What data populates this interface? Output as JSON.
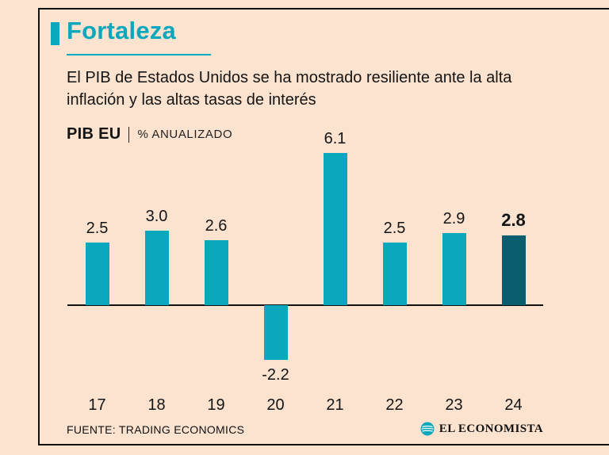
{
  "header": {
    "title": "Fortaleza",
    "subtitle": "El PIB de Estados Unidos se ha mostrado resiliente ante la alta inflación y las altas tasas de interés"
  },
  "chart_data": {
    "type": "bar",
    "title": "PIB EU",
    "subtitle": "% ANUALIZADO",
    "categories": [
      "17",
      "18",
      "19",
      "20",
      "21",
      "22",
      "23",
      "24"
    ],
    "values": [
      2.5,
      3.0,
      2.6,
      -2.2,
      6.1,
      2.5,
      2.9,
      2.8
    ],
    "highlight_index": 7,
    "ylim": [
      -3,
      7
    ],
    "grid": false,
    "value_labels": true,
    "legend": "none"
  },
  "footer": {
    "source": "FUENTE: TRADING ECONOMICS",
    "brand": "EL ECONOMISTA"
  },
  "colors": {
    "background": "#fbe3d0",
    "accent": "#0ba7bd",
    "bar": "#0ba7bd",
    "bar_highlight": "#0a5d6e",
    "text": "#141414"
  }
}
